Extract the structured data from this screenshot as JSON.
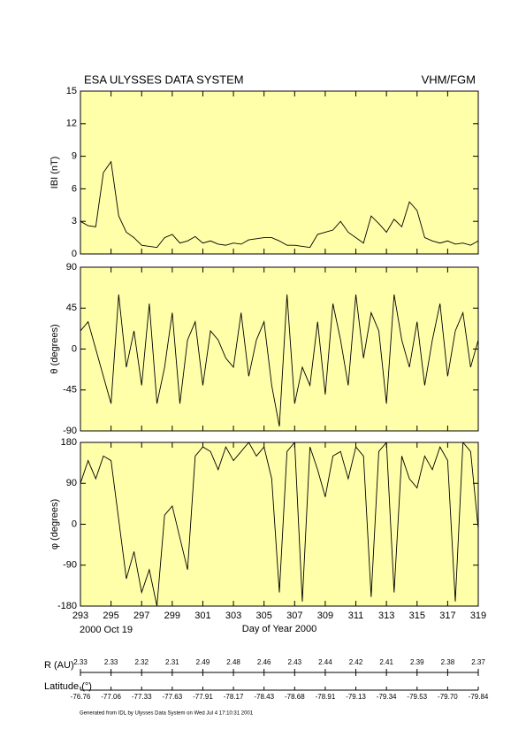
{
  "title": "ESA ULYSSES DATA SYSTEM",
  "instrument": "VHM/FGM",
  "date_label": "2000 Oct 19",
  "xlabel": "Day of Year 2000",
  "ephemeris": {
    "r_label": "R (AU)",
    "r_values": [
      "2.33",
      "2.33",
      "2.32",
      "2.31",
      "2.49",
      "2.48",
      "2.46",
      "2.43",
      "2.44",
      "2.42",
      "2.41",
      "2.39",
      "2.38",
      "2.37"
    ],
    "lat_label": "Latitude (°)",
    "lat_values": [
      "-76.76",
      "-77.06",
      "-77.33",
      "-77.63",
      "-77.91",
      "-78.17",
      "-78.43",
      "-78.68",
      "-78.91",
      "-79.13",
      "-79.34",
      "-79.53",
      "-79.70",
      "-79.84"
    ]
  },
  "footer": "Generated from IDL by Ulysses Data System on Wed Jul 4 17:10:31 2001",
  "chart_data": [
    {
      "type": "line",
      "ylabel": "IBI (nT)",
      "color": "#000000",
      "background": "#ffffaa",
      "xlim": [
        293,
        319
      ],
      "xticks": [
        293,
        295,
        297,
        299,
        301,
        303,
        305,
        307,
        309,
        311,
        313,
        315,
        317,
        319
      ],
      "ylim": [
        0,
        15
      ],
      "yticks": [
        0,
        3,
        6,
        9,
        12,
        15
      ],
      "x": [
        293,
        293.5,
        294,
        294.5,
        295,
        295.5,
        296,
        296.5,
        297,
        297.5,
        298,
        298.5,
        299,
        299.5,
        300,
        300.5,
        301,
        301.5,
        302,
        302.5,
        303,
        303.5,
        304,
        304.5,
        305,
        305.5,
        306,
        306.5,
        307,
        307.5,
        308,
        308.5,
        309,
        309.5,
        310,
        310.5,
        311,
        311.5,
        312,
        312.5,
        313,
        313.5,
        314,
        314.5,
        315,
        315.5,
        316,
        316.5,
        317,
        317.5,
        318,
        318.5,
        319
      ],
      "values": [
        3,
        2.6,
        2.5,
        7.5,
        8.5,
        3.5,
        2,
        1.5,
        0.8,
        0.7,
        0.6,
        1.5,
        1.8,
        1,
        1.2,
        1.6,
        1,
        1.2,
        0.9,
        0.8,
        1,
        0.9,
        1.3,
        1.4,
        1.5,
        1.5,
        1.2,
        0.8,
        0.8,
        0.7,
        0.6,
        1.8,
        2,
        2.2,
        3,
        2,
        1.5,
        1,
        3.5,
        2.8,
        2,
        3.2,
        2.5,
        4.8,
        4,
        1.5,
        1.2,
        1,
        1.2,
        0.9,
        1,
        0.8,
        1.2
      ]
    },
    {
      "type": "line",
      "ylabel": "θ (degrees)",
      "color": "#000000",
      "background": "#ffffaa",
      "xlim": [
        293,
        319
      ],
      "xticks": [
        293,
        295,
        297,
        299,
        301,
        303,
        305,
        307,
        309,
        311,
        313,
        315,
        317,
        319
      ],
      "ylim": [
        -90,
        90
      ],
      "yticks": [
        -90,
        -45,
        0,
        45,
        90
      ],
      "x": [
        293,
        293.5,
        294,
        294.5,
        295,
        295.5,
        296,
        296.5,
        297,
        297.5,
        298,
        298.5,
        299,
        299.5,
        300,
        300.5,
        301,
        301.5,
        302,
        302.5,
        303,
        303.5,
        304,
        304.5,
        305,
        305.5,
        306,
        306.5,
        307,
        307.5,
        308,
        308.5,
        309,
        309.5,
        310,
        310.5,
        311,
        311.5,
        312,
        312.5,
        313,
        313.5,
        314,
        314.5,
        315,
        315.5,
        316,
        316.5,
        317,
        317.5,
        318,
        318.5,
        319
      ],
      "values": [
        20,
        30,
        0,
        -30,
        -60,
        60,
        -20,
        20,
        -40,
        50,
        -60,
        -20,
        40,
        -60,
        10,
        30,
        -40,
        20,
        10,
        -10,
        -20,
        40,
        -30,
        10,
        30,
        -40,
        -85,
        60,
        -60,
        -20,
        -40,
        30,
        -50,
        50,
        10,
        -40,
        60,
        -10,
        40,
        20,
        -60,
        60,
        10,
        -20,
        30,
        -40,
        10,
        50,
        -30,
        20,
        40,
        -20,
        10
      ]
    },
    {
      "type": "line",
      "ylabel": "φ (degrees)",
      "color": "#000000",
      "background": "#ffffaa",
      "xlim": [
        293,
        319
      ],
      "xticks": [
        293,
        295,
        297,
        299,
        301,
        303,
        305,
        307,
        309,
        311,
        313,
        315,
        317,
        319
      ],
      "ylim": [
        -180,
        180
      ],
      "yticks": [
        -180,
        -90,
        0,
        90,
        180
      ],
      "x": [
        293,
        293.5,
        294,
        294.5,
        295,
        295.5,
        296,
        296.5,
        297,
        297.5,
        298,
        298.5,
        299,
        299.5,
        300,
        300.5,
        301,
        301.5,
        302,
        302.5,
        303,
        303.5,
        304,
        304.5,
        305,
        305.5,
        306,
        306.5,
        307,
        307.5,
        308,
        308.5,
        309,
        309.5,
        310,
        310.5,
        311,
        311.5,
        312,
        312.5,
        313,
        313.5,
        314,
        314.5,
        315,
        315.5,
        316,
        316.5,
        317,
        317.5,
        318,
        318.5,
        319
      ],
      "values": [
        90,
        140,
        100,
        150,
        140,
        10,
        -120,
        -60,
        -150,
        -100,
        -180,
        20,
        40,
        -30,
        -100,
        150,
        170,
        160,
        120,
        170,
        140,
        160,
        180,
        150,
        170,
        100,
        -150,
        160,
        180,
        -170,
        170,
        120,
        60,
        150,
        160,
        100,
        170,
        150,
        -160,
        160,
        180,
        -150,
        150,
        100,
        80,
        150,
        120,
        170,
        140,
        -170,
        180,
        160,
        -10
      ]
    }
  ]
}
